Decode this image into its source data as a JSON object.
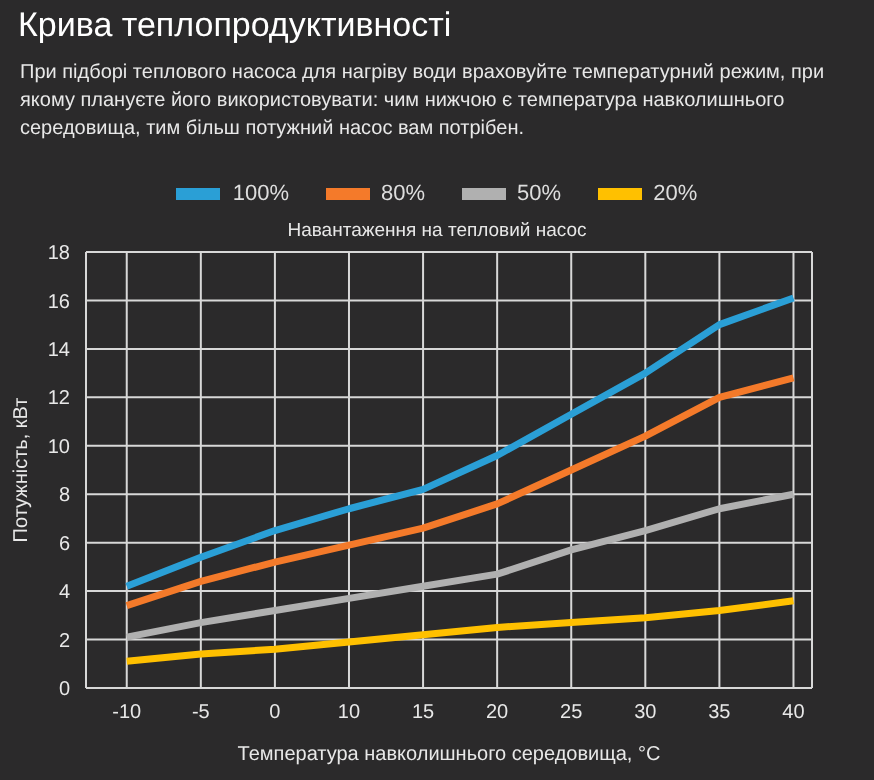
{
  "chart_data": {
    "type": "line",
    "title": "Крива теплопродуктивності",
    "subtitle": "Навантаження на тепловий насос",
    "annotations": [
      "При підборі теплового насоса для нагріву води враховуйте температурний режим, при якому плануєте його використовувати: чим нижчою є температура навколишнього середовища, тим більш потужний насос вам потрібен."
    ],
    "xlabel": "Температура навколишнього середовища, °C",
    "ylabel": "Потужність, кВт",
    "categories": [
      "-10",
      "-5",
      "0",
      "10",
      "15",
      "20",
      "25",
      "30",
      "35",
      "40"
    ],
    "series": [
      {
        "name": "100%",
        "color": "#2a9fd6",
        "values": [
          4.2,
          5.4,
          6.5,
          7.4,
          8.2,
          9.6,
          11.3,
          13.0,
          15.0,
          16.1
        ]
      },
      {
        "name": "80%",
        "color": "#f47a2a",
        "values": [
          3.4,
          4.4,
          5.2,
          5.9,
          6.6,
          7.6,
          9.0,
          10.4,
          12.0,
          12.8
        ]
      },
      {
        "name": "50%",
        "color": "#b0b0b0",
        "values": [
          2.1,
          2.7,
          3.2,
          3.7,
          4.2,
          4.7,
          5.7,
          6.5,
          7.4,
          8.0
        ]
      },
      {
        "name": "20%",
        "color": "#ffc000",
        "values": [
          1.1,
          1.4,
          1.6,
          1.9,
          2.2,
          2.5,
          2.7,
          2.9,
          3.2,
          3.6
        ]
      }
    ],
    "ylim": [
      0,
      18
    ],
    "yticks": [
      0,
      2,
      4,
      6,
      8,
      10,
      12,
      14,
      16,
      18
    ],
    "grid": true,
    "legend": "top",
    "marker": "none",
    "line_style": "solid"
  }
}
